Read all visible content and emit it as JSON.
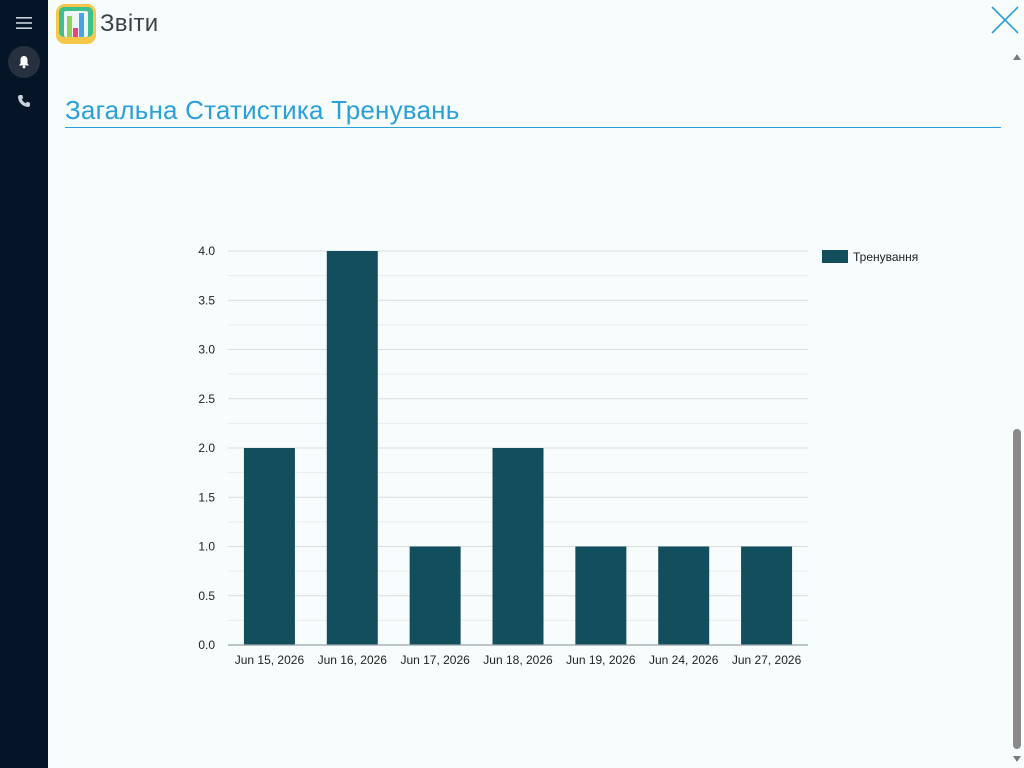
{
  "header": {
    "app_title": "Звіти",
    "app_icon": "reports-app-icon"
  },
  "sidebar": {
    "items": [
      {
        "name": "menu",
        "icon": "hamburger-menu-icon"
      },
      {
        "name": "notifications",
        "icon": "bell-icon"
      },
      {
        "name": "calls",
        "icon": "phone-icon"
      }
    ]
  },
  "main": {
    "section_title": "Загальна Статистика Тренувань"
  },
  "colors": {
    "bar": "#134e5c",
    "title": "#2b9fd9",
    "sidebar": "#051426"
  },
  "chart_data": {
    "type": "bar",
    "categories": [
      "Jun 15, 2026",
      "Jun 16, 2026",
      "Jun 17, 2026",
      "Jun 18, 2026",
      "Jun 19, 2026",
      "Jun 24, 2026",
      "Jun 27, 2026"
    ],
    "series": [
      {
        "name": "Тренування",
        "values": [
          2,
          4,
          1,
          2,
          1,
          1,
          1
        ]
      }
    ],
    "ylim": [
      0,
      4
    ],
    "yticks": [
      "0.0",
      "0.5",
      "1.0",
      "1.5",
      "2.0",
      "2.5",
      "3.0",
      "3.5",
      "4.0"
    ],
    "grid": true,
    "legend": "top-right"
  }
}
